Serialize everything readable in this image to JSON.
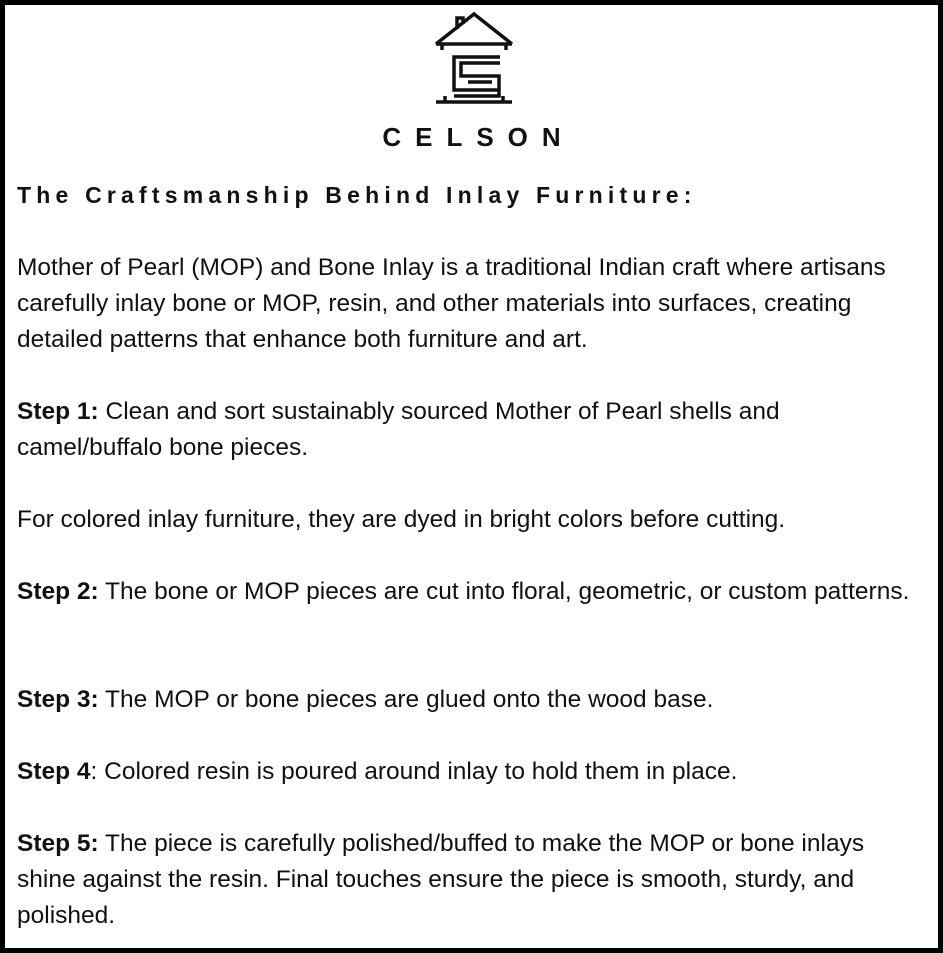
{
  "brand": {
    "name": "CELSON",
    "logo": "house-s-logo"
  },
  "title": "The Craftsmanship Behind Inlay Furniture:",
  "intro": "Mother of Pearl (MOP) and Bone Inlay is a traditional Indian craft where artisans carefully inlay bone or MOP, resin, and other materials into surfaces, creating detailed patterns that enhance both furniture and art.",
  "steps": [
    {
      "label": "Step 1:",
      "text": " Clean and sort sustainably sourced Mother of Pearl shells and camel/buffalo bone pieces."
    },
    {
      "label": "",
      "text": "For colored inlay furniture, they are dyed in bright colors before cutting."
    },
    {
      "label": "Step 2:",
      "text": " The bone or MOP pieces are cut into floral, geometric, or custom patterns."
    },
    {
      "label": "Step 3:",
      "text": " The MOP or bone pieces are glued onto the wood base."
    },
    {
      "label": "Step 4",
      "text": ": Colored resin is poured around inlay to hold them in place."
    },
    {
      "label": "Step 5:",
      "text": " The piece is carefully polished/buffed to make the MOP or bone inlays shine against the resin. Final touches ensure the piece is smooth, sturdy, and polished."
    }
  ]
}
